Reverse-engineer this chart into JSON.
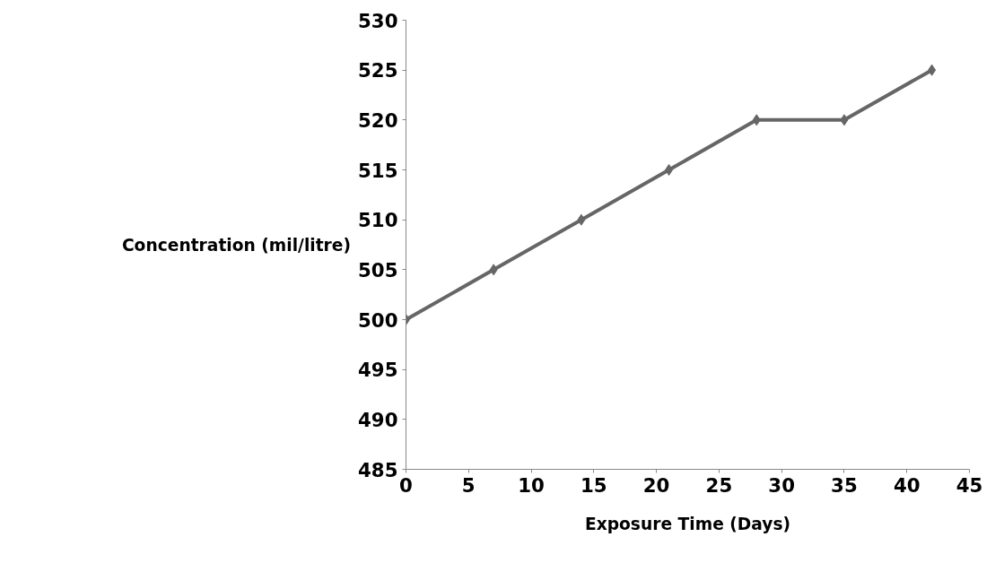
{
  "chart_data": {
    "type": "line",
    "xlabel": "Exposure Time (Days)",
    "ylabel": "Concentration (mil/litre)",
    "x": [
      0,
      7,
      14,
      21,
      28,
      35,
      42
    ],
    "series": [
      {
        "color": "#666666",
        "values": [
          500,
          505,
          510,
          515,
          520,
          520,
          525
        ]
      }
    ],
    "xlim": [
      0,
      45
    ],
    "xticks": [
      0,
      5,
      10,
      15,
      20,
      25,
      30,
      35,
      40,
      45
    ],
    "ylim": [
      485,
      530
    ],
    "yticks": [
      485,
      490,
      495,
      500,
      505,
      510,
      515,
      520,
      525,
      530
    ],
    "grid": false,
    "marker": "diamond",
    "line_style": "solid"
  }
}
